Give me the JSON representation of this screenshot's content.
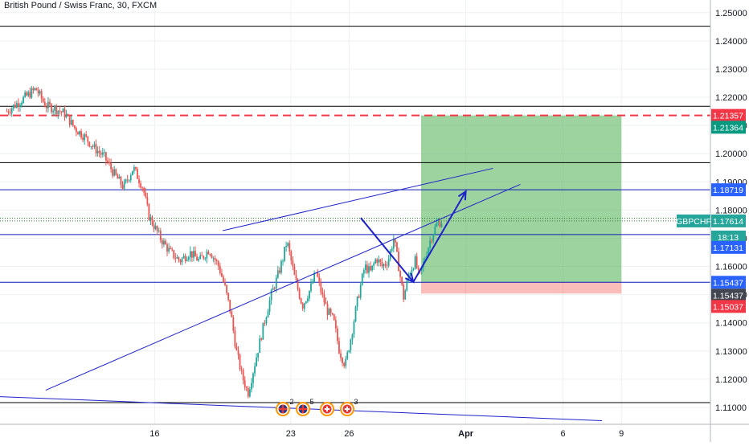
{
  "header": {
    "title": "British Pound / Swiss Franc, 30, FXCM"
  },
  "chart_data": {
    "type": "candlestick",
    "symbol": "GBPCHF",
    "y_axis": {
      "range": [
        1.104,
        1.2545
      ],
      "ticks": [
        "1.25000",
        "1.24000",
        "1.23000",
        "1.22000",
        "1.21000",
        "1.20000",
        "1.19000",
        "1.18000",
        "1.17000",
        "1.16000",
        "1.15000",
        "1.14000",
        "1.13000",
        "1.12000",
        "1.11000"
      ]
    },
    "x_axis": {
      "ticks": [
        {
          "label": "16",
          "day": 16
        },
        {
          "label": "23",
          "day": 23
        },
        {
          "label": "26",
          "day": 26
        },
        {
          "label": "Apr",
          "day": 32,
          "bold": true
        },
        {
          "label": "6",
          "day": 37
        },
        {
          "label": "9",
          "day": 40
        }
      ]
    },
    "price_labels": [
      {
        "text": "1.21357",
        "value": 1.21357,
        "color": "#f23645"
      },
      {
        "text": "1.21364",
        "value": 1.21364,
        "color": "#089981",
        "offset": 15
      },
      {
        "text": "1.18719",
        "value": 1.18719,
        "color": "#2962ff"
      },
      {
        "text": "GBPCHF",
        "value": 1.17614,
        "color": "#26a69a",
        "kind": "symbol"
      },
      {
        "text": "1.17614",
        "value": 1.17614,
        "color": "#26a69a"
      },
      {
        "text": "18:13",
        "value": 1.17614,
        "color": "#26a69a",
        "offset": 20
      },
      {
        "text": "1.17131",
        "value": 1.17131,
        "color": "#2962ff",
        "offset": 16
      },
      {
        "text": "1.15437",
        "value": 1.15437,
        "color": "#2962ff"
      },
      {
        "text": "1.15437",
        "value": 1.15437,
        "color": "#434651",
        "offset": 16
      },
      {
        "text": "1.15037",
        "value": 1.15037,
        "color": "#f23645",
        "offset": 16
      }
    ],
    "horizontal_lines": [
      {
        "value": 1.2452,
        "color": "#000000",
        "style": "solid"
      },
      {
        "value": 1.2168,
        "color": "#000000",
        "style": "solid"
      },
      {
        "value": 1.21357,
        "color": "#f23645",
        "style": "dashed"
      },
      {
        "value": 1.1968,
        "color": "#000000",
        "style": "solid"
      },
      {
        "value": 1.18719,
        "color": "#0d1bb5",
        "style": "solid"
      },
      {
        "value": 1.1771,
        "color": "#2e7d32",
        "style": "dotted"
      },
      {
        "value": 1.17614,
        "color": "#2e7d32",
        "style": "dotted"
      },
      {
        "value": 1.17131,
        "color": "#0d1bb5",
        "style": "solid"
      },
      {
        "value": 1.15437,
        "color": "#0d1bb5",
        "style": "solid"
      },
      {
        "value": 1.1117,
        "color": "#000000",
        "style": "solid"
      }
    ],
    "trend_lines": [
      {
        "from": [
          10.4,
          1.1161
        ],
        "to": [
          34.8,
          1.1891
        ],
        "color": "#1e22c8"
      },
      {
        "from": [
          -1.0,
          1.1163
        ],
        "to": [
          39.0,
          1.1053
        ],
        "color": "#1e22c8"
      },
      {
        "from": [
          19.5,
          1.1727
        ],
        "to": [
          33.4,
          1.1948
        ],
        "color": "#1e22c8"
      }
    ],
    "projection_arrows": [
      {
        "points": [
          [
            26.6,
            1.1772
          ],
          [
            29.3,
            1.1545
          ],
          [
            32.0,
            1.1866
          ]
        ],
        "color": "#1e22c8"
      }
    ],
    "position": {
      "kind": "long",
      "entry": 1.15437,
      "target": 1.21357,
      "stop": 1.15037,
      "start_day": 29.7,
      "end_day": 40.0,
      "profit_color": "#4caf50",
      "loss_color": "#f44336"
    },
    "price_path": [
      [
        8.4,
        1.215
      ],
      [
        9.9,
        1.223
      ],
      [
        10.4,
        1.217
      ],
      [
        10.9,
        1.216
      ],
      [
        11.4,
        1.214
      ],
      [
        11.9,
        1.209
      ],
      [
        12.4,
        1.206
      ],
      [
        12.9,
        1.202
      ],
      [
        13.4,
        1.199
      ],
      [
        13.9,
        1.193
      ],
      [
        14.4,
        1.188
      ],
      [
        14.9,
        1.195
      ],
      [
        15.4,
        1.188
      ],
      [
        15.7,
        1.178
      ],
      [
        16.3,
        1.17
      ],
      [
        16.8,
        1.165
      ],
      [
        17.3,
        1.162
      ],
      [
        17.8,
        1.165
      ],
      [
        18.3,
        1.162
      ],
      [
        18.8,
        1.166
      ],
      [
        19.3,
        1.16
      ],
      [
        19.6,
        1.153
      ],
      [
        19.9,
        1.144
      ],
      [
        20.2,
        1.13
      ],
      [
        20.5,
        1.121
      ],
      [
        20.8,
        1.115
      ],
      [
        21.1,
        1.124
      ],
      [
        21.4,
        1.133
      ],
      [
        21.7,
        1.142
      ],
      [
        22.0,
        1.15
      ],
      [
        22.3,
        1.156
      ],
      [
        22.6,
        1.163
      ],
      [
        22.8,
        1.169
      ],
      [
        23.2,
        1.156
      ],
      [
        23.6,
        1.146
      ],
      [
        24.0,
        1.152
      ],
      [
        24.3,
        1.158
      ],
      [
        24.6,
        1.15
      ],
      [
        24.9,
        1.144
      ],
      [
        25.2,
        1.141
      ],
      [
        25.5,
        1.13
      ],
      [
        25.8,
        1.125
      ],
      [
        26.1,
        1.135
      ],
      [
        26.4,
        1.147
      ],
      [
        26.8,
        1.16
      ],
      [
        27.1,
        1.158
      ],
      [
        27.4,
        1.163
      ],
      [
        27.7,
        1.16
      ],
      [
        28.0,
        1.162
      ],
      [
        28.3,
        1.17
      ],
      [
        28.5,
        1.162
      ],
      [
        28.8,
        1.149
      ],
      [
        29.1,
        1.158
      ],
      [
        29.4,
        1.162
      ],
      [
        29.6,
        1.156
      ],
      [
        29.9,
        1.163
      ],
      [
        30.2,
        1.17
      ],
      [
        30.5,
        1.175
      ],
      [
        30.8,
        1.1761
      ]
    ],
    "event_markers": [
      {
        "kind": "uk-flag",
        "count": "2"
      },
      {
        "kind": "uk-flag",
        "count": "5"
      },
      {
        "kind": "ch-flag",
        "count": ""
      },
      {
        "kind": "ch-flag",
        "count": "3"
      }
    ],
    "colors": {
      "up": "#26a69a",
      "down": "#ef5350",
      "grid": "#eef0f3",
      "axis_text": "#131722"
    }
  }
}
